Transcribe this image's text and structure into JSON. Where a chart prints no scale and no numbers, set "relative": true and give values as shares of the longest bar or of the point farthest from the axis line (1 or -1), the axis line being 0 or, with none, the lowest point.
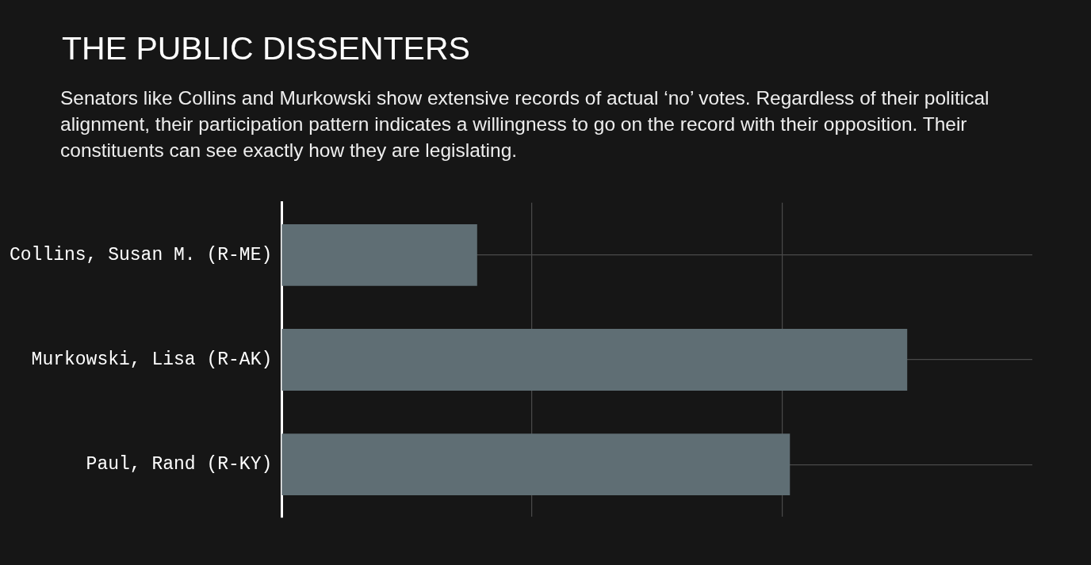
{
  "chart_data": {
    "type": "bar",
    "orientation": "horizontal",
    "relative": true,
    "title": "THE PUBLIC DISSENTERS",
    "subtitle": "Senators like Collins and Murkowski show extensive records of actual ‘no’ votes. Regardless of their political alignment, their participation pattern indicates a willingness to go on the record with their opposition. Their constituents can see exactly how they are legislating.",
    "categories": [
      "Collins, Susan M. (R-ME)",
      "Murkowski, Lisa (R-AK)",
      "Paul, Rand (R-KY)"
    ],
    "values": [
      0.3125,
      1,
      0.8125
    ],
    "color": "#5f6e74",
    "grid": true,
    "legend": false
  }
}
